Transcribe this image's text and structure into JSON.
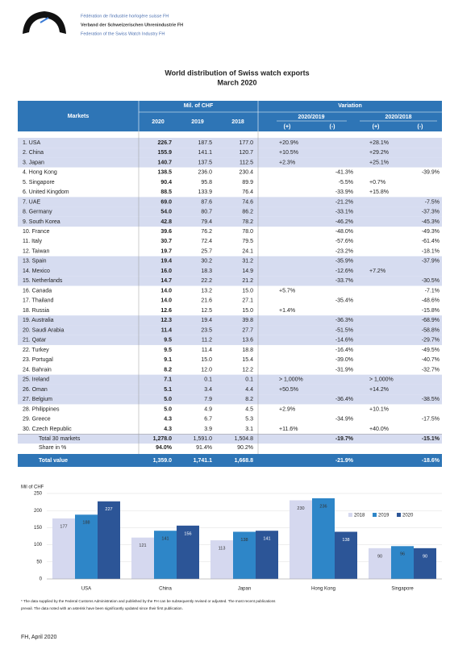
{
  "header": {
    "org_lines": [
      "Fédération de l'industrie horlogère suisse FH",
      "Verband der Schweizerischen Uhrenindustrie FH",
      "Federation of the Swiss Watch Industry FH"
    ]
  },
  "title": "World distribution of Swiss watch exports",
  "subtitle": "March 2020",
  "table": {
    "headers": {
      "markets": "Markets",
      "mil": "Mil. of CHF",
      "variation": "Variation",
      "years": [
        "2020",
        "2019",
        "2018"
      ],
      "periods": [
        "2020/2019",
        "2020/2018"
      ],
      "signs": [
        "(+)",
        "(-)",
        "(+)",
        "(-)"
      ]
    },
    "rows": [
      [
        "1. USA",
        "226.7",
        "187.5",
        "177.0",
        "+20.9%",
        null,
        "+28.1%",
        null
      ],
      [
        "2. China",
        "155.9",
        "141.1",
        "120.7",
        "+10.5%",
        null,
        "+29.2%",
        null
      ],
      [
        "3. Japan",
        "140.7",
        "137.5",
        "112.5",
        "+2.3%",
        null,
        "+25.1%",
        null
      ],
      [
        "4. Hong Kong",
        "138.5",
        "236.0",
        "230.4",
        null,
        "-41.3%",
        null,
        "-39.9%"
      ],
      [
        "5. Singapore",
        "90.4",
        "95.8",
        "89.9",
        null,
        "-5.5%",
        "+0.7%",
        null
      ],
      [
        "6. United Kingdom",
        "88.5",
        "133.9",
        "76.4",
        null,
        "-33.9%",
        "+15.8%",
        null
      ],
      [
        "7. UAE",
        "69.0",
        "87.6",
        "74.6",
        null,
        "-21.2%",
        null,
        "-7.5%"
      ],
      [
        "8. Germany",
        "54.0",
        "80.7",
        "86.2",
        null,
        "-33.1%",
        null,
        "-37.3%"
      ],
      [
        "9. South Korea",
        "42.8",
        "79.4",
        "78.2",
        null,
        "-46.2%",
        null,
        "-45.3%"
      ],
      [
        "10. France",
        "39.6",
        "76.2",
        "78.0",
        null,
        "-48.0%",
        null,
        "-49.3%"
      ],
      [
        "11. Italy",
        "30.7",
        "72.4",
        "79.5",
        null,
        "-57.6%",
        null,
        "-61.4%"
      ],
      [
        "12. Taiwan",
        "19.7",
        "25.7",
        "24.1",
        null,
        "-23.2%",
        null,
        "-18.1%"
      ],
      [
        "13. Spain",
        "19.4",
        "30.2",
        "31.2",
        null,
        "-35.9%",
        null,
        "-37.9%"
      ],
      [
        "14. Mexico",
        "16.0",
        "18.3",
        "14.9",
        null,
        "-12.6%",
        "+7.2%",
        null
      ],
      [
        "15. Netherlands",
        "14.7",
        "22.2",
        "21.2",
        null,
        "-33.7%",
        null,
        "-30.5%"
      ],
      [
        "16. Canada",
        "14.0",
        "13.2",
        "15.0",
        "+5.7%",
        null,
        null,
        "-7.1%"
      ],
      [
        "17. Thailand",
        "14.0",
        "21.6",
        "27.1",
        null,
        "-35.4%",
        null,
        "-48.6%"
      ],
      [
        "18. Russia",
        "12.6",
        "12.5",
        "15.0",
        "+1.4%",
        null,
        null,
        "-15.8%"
      ],
      [
        "19. Australia",
        "12.3",
        "19.4",
        "39.8",
        null,
        "-36.3%",
        null,
        "-68.9%"
      ],
      [
        "20. Saudi Arabia",
        "11.4",
        "23.5",
        "27.7",
        null,
        "-51.5%",
        null,
        "-58.8%"
      ],
      [
        "21. Qatar",
        "9.5",
        "11.2",
        "13.6",
        null,
        "-14.6%",
        null,
        "-29.7%"
      ],
      [
        "22. Turkey",
        "9.5",
        "11.4",
        "18.8",
        null,
        "-16.4%",
        null,
        "-49.5%"
      ],
      [
        "23. Portugal",
        "9.1",
        "15.0",
        "15.4",
        null,
        "-39.0%",
        null,
        "-40.7%"
      ],
      [
        "24. Bahrain",
        "8.2",
        "12.0",
        "12.2",
        null,
        "-31.9%",
        null,
        "-32.7%"
      ],
      [
        "25. Ireland",
        "7.1",
        "0.1",
        "0.1",
        "> 1,000%",
        null,
        "> 1,000%",
        null
      ],
      [
        "26. Oman",
        "5.1",
        "3.4",
        "4.4",
        "+50.5%",
        null,
        "+14.2%",
        null
      ],
      [
        "27. Belgium",
        "5.0",
        "7.9",
        "8.2",
        null,
        "-36.4%",
        null,
        "-38.5%"
      ],
      [
        "28. Philippines",
        "5.0",
        "4.9",
        "4.5",
        "+2.9%",
        null,
        "+10.1%",
        null
      ],
      [
        "29. Greece",
        "4.3",
        "6.7",
        "5.3",
        null,
        "-34.9%",
        null,
        "-17.5%"
      ],
      [
        "30. Czech Republic",
        "4.3",
        "3.9",
        "3.1",
        "+11.6%",
        null,
        "+40.0%",
        null
      ],
      [
        "Total 30 markets",
        "1,278.0",
        "1,591.0",
        "1,504.8",
        null,
        "-19.7%",
        null,
        "-15.1%"
      ],
      [
        "Share in %",
        "94.0%",
        "91.4%",
        "90.2%",
        null,
        null,
        null,
        null
      ],
      [
        "Total value",
        "1,359.0",
        "1,741.1",
        "1,668.8",
        null,
        "-21.9%",
        null,
        "-18.6%"
      ]
    ]
  },
  "chart_data": {
    "type": "bar",
    "y_label": "Mil of CHF",
    "categories": [
      "USA",
      "China",
      "Japan",
      "Hong Kong",
      "Singapore"
    ],
    "series": [
      {
        "name": "2018",
        "color": "#d5d8ef",
        "values": [
          177,
          121,
          113,
          230,
          90
        ]
      },
      {
        "name": "2019",
        "color": "#2e86c8",
        "values": [
          188,
          141,
          138,
          236,
          96
        ]
      },
      {
        "name": "2020",
        "color": "#2c5597",
        "values": [
          227,
          156,
          141,
          138,
          90
        ]
      }
    ],
    "ylim": [
      0,
      250
    ],
    "yticks": [
      0,
      50,
      100,
      150,
      200,
      250
    ],
    "grid": true,
    "legend": "top-right"
  },
  "footnote": [
    "* The data supplied by the Federal Customs Administration and published by the FH can be subsequently revised or adjusted. The most recent publications",
    "prevail. The data noted with an asterisk have been significantly updated since their first publication."
  ],
  "footer": "FH, April 2020"
}
